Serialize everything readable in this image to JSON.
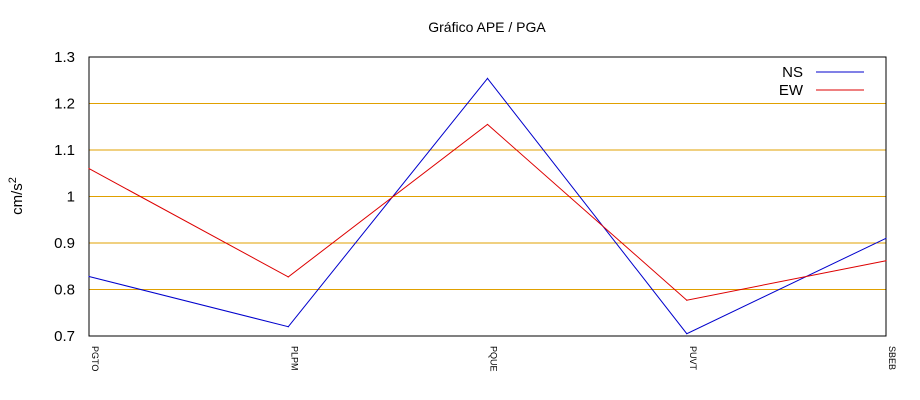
{
  "chart_data": {
    "type": "line",
    "title": "Gráfico  APE / PGA",
    "ylabel": "cm/s",
    "ylabel_superscript": "2",
    "xlabel": "",
    "categories": [
      "PGTO",
      "PLPM",
      "PQUE",
      "PUVT",
      "SBEB"
    ],
    "ylim": [
      0.7,
      1.3
    ],
    "yticks": [
      "0.7",
      "0.8",
      "0.9",
      "1",
      "1.1",
      "1.2",
      "1.3"
    ],
    "grid": true,
    "grid_color": "#e0a000",
    "legend_position": "top-right",
    "series": [
      {
        "name": "NS",
        "color": "#0000cc",
        "values": [
          0.828,
          0.72,
          1.254,
          0.705,
          0.91
        ]
      },
      {
        "name": "EW",
        "color": "#dd0000",
        "values": [
          1.06,
          0.827,
          1.155,
          0.777,
          0.862
        ]
      }
    ]
  }
}
